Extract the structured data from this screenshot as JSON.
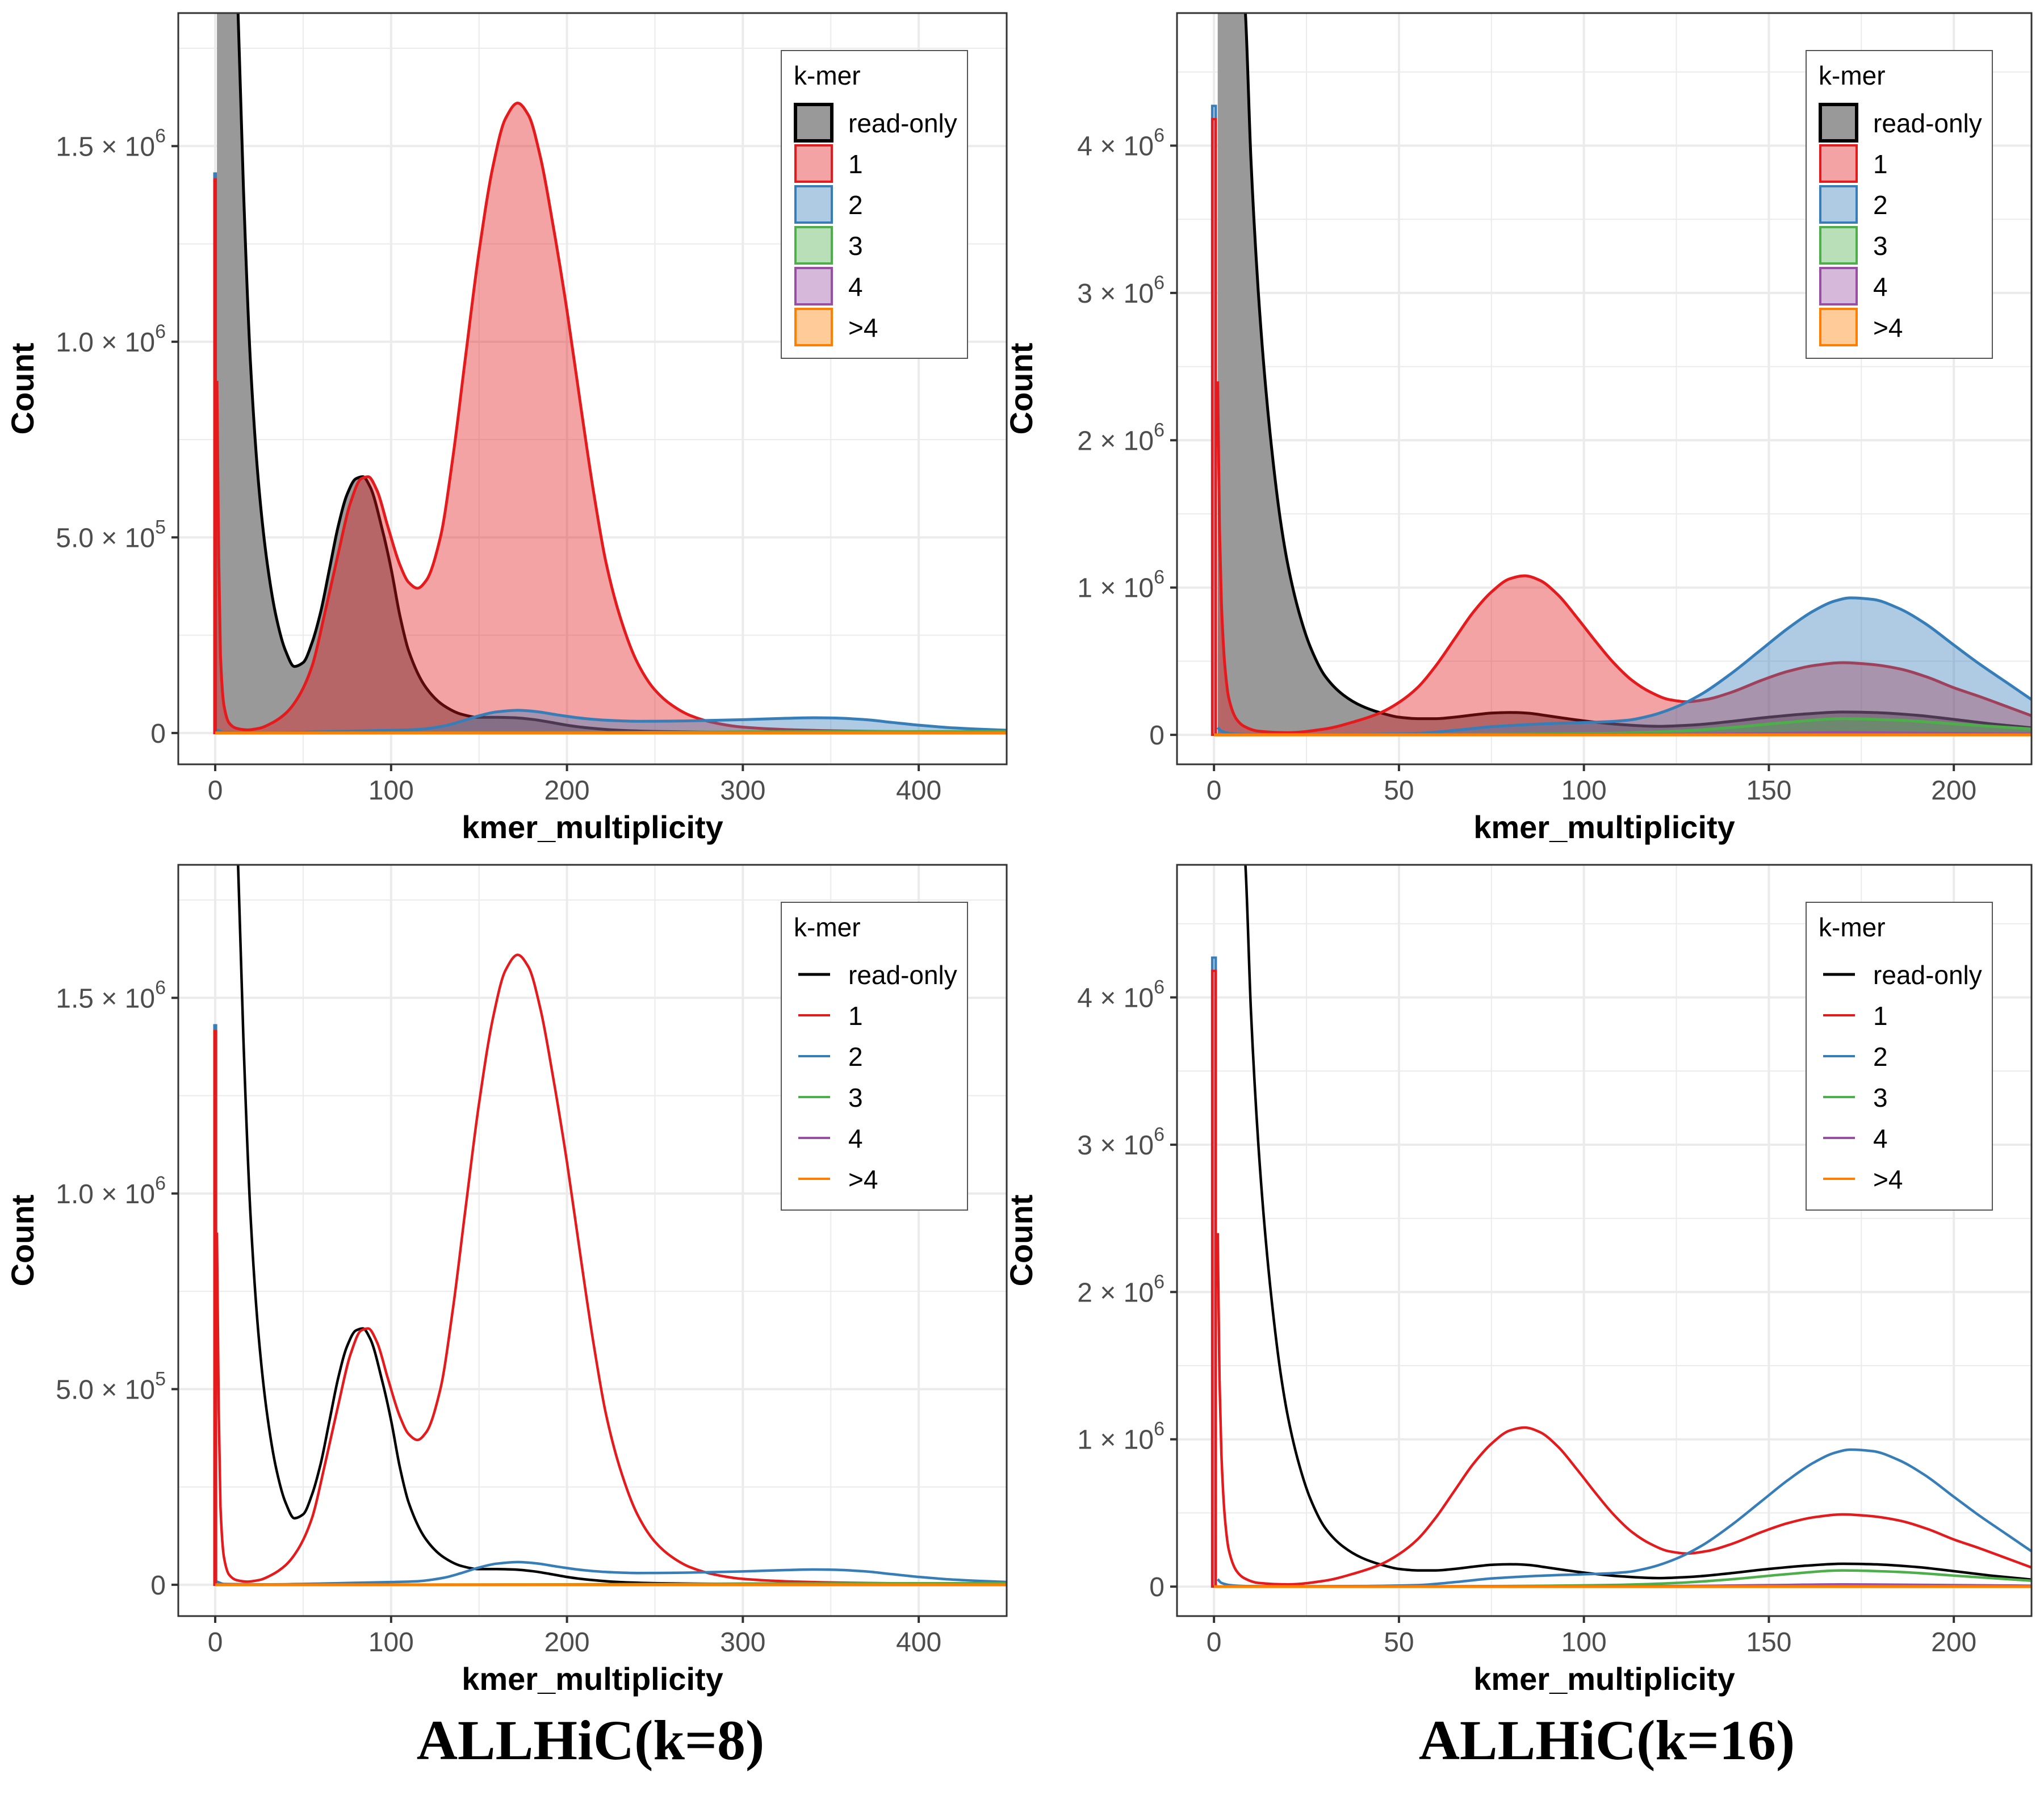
{
  "figure": {
    "titles": [
      "ALLHiC(k=8)",
      "ALLHiC(k=16)"
    ]
  },
  "palette": {
    "read-only": {
      "line": "#000000",
      "fill": "#999999",
      "fill_opacity": 1.0
    },
    "1": {
      "line": "#E41A1C",
      "fill": "#E41A1C",
      "fill_opacity": 0.4
    },
    "2": {
      "line": "#377EB8",
      "fill": "#377EB8",
      "fill_opacity": 0.4
    },
    "3": {
      "line": "#4DAF4A",
      "fill": "#4DAF4A",
      "fill_opacity": 0.4
    },
    "4": {
      "line": "#984EA3",
      "fill": "#984EA3",
      "fill_opacity": 0.4
    },
    ">4": {
      "line": "#FF7F00",
      "fill": "#FF7F00",
      "fill_opacity": 0.4
    }
  },
  "chart_data": [
    {
      "id": "k8-filled",
      "type": "area",
      "style": "filled",
      "panel": "top-left",
      "title": "",
      "xlabel": "kmer_multiplicity",
      "ylabel": "Count",
      "xlim": [
        -21,
        450
      ],
      "ylim": [
        -80000.0,
        1840000.0
      ],
      "xticks": [
        0,
        100,
        200,
        300,
        400
      ],
      "xtick_labels": [
        "0",
        "100",
        "200",
        "300",
        "400"
      ],
      "yticks": [
        0,
        500000,
        1000000,
        1500000
      ],
      "ytick_labels": [
        {
          "mant": "0",
          "exp": ""
        },
        {
          "mant": "5.0 × 10",
          "exp": "5"
        },
        {
          "mant": "1.0 × 10",
          "exp": "6"
        },
        {
          "mant": "1.5 × 10",
          "exp": "6"
        }
      ],
      "grid": true,
      "legend": {
        "title": "k-mer",
        "placement": "top-right",
        "key": "box",
        "entries": [
          "read-only",
          "1",
          "2",
          "3",
          "4",
          ">4"
        ]
      },
      "zero_bars": [
        {
          "name": "2",
          "value": 1430000
        },
        {
          "name": "1",
          "value": 1415000
        }
      ],
      "series": [
        {
          "name": "read-only",
          "x": [
            1,
            3,
            5,
            8,
            10,
            13,
            16,
            20,
            25,
            30,
            35,
            40,
            45,
            50,
            55,
            60,
            65,
            70,
            75,
            80,
            84,
            88,
            95,
            100,
            105,
            110,
            120,
            130,
            140,
            150,
            160,
            170,
            180,
            190,
            200,
            210,
            230,
            250,
            300,
            350,
            400,
            450
          ],
          "y": [
            9000000,
            7000000,
            5000000,
            3200000,
            2500000,
            1840000,
            1400000,
            950000,
            620000,
            420000,
            290000,
            210000,
            170000,
            180000,
            230000,
            310000,
            420000,
            530000,
            610000,
            650000,
            655000,
            630000,
            520000,
            420000,
            300000,
            210000,
            115000,
            70000,
            48000,
            40000,
            40000,
            39000,
            35000,
            28000,
            20000,
            14000,
            7000,
            4000,
            1500,
            600,
            200,
            0
          ]
        },
        {
          "name": "1",
          "x": [
            1,
            2,
            3,
            5,
            8,
            12,
            18,
            25,
            32,
            40,
            47,
            55,
            62,
            70,
            77,
            83,
            87,
            92,
            98,
            105,
            110,
            115,
            120,
            128,
            135,
            142,
            150,
            158,
            165,
            172,
            178,
            185,
            192,
            200,
            208,
            215,
            222,
            230,
            240,
            250,
            260,
            270,
            285,
            300,
            330,
            360,
            400,
            450
          ],
          "y": [
            900000,
            450000,
            200000,
            70000,
            25000,
            12000,
            8000,
            12000,
            25000,
            50000,
            90000,
            170000,
            300000,
            460000,
            590000,
            650000,
            655000,
            620000,
            530000,
            430000,
            385000,
            370000,
            390000,
            500000,
            700000,
            950000,
            1230000,
            1450000,
            1570000,
            1610000,
            1580000,
            1470000,
            1300000,
            1080000,
            830000,
            620000,
            440000,
            300000,
            180000,
            110000,
            70000,
            45000,
            25000,
            15000,
            8000,
            5000,
            3000,
            1500
          ]
        },
        {
          "name": "2",
          "x": [
            1,
            5,
            30,
            60,
            80,
            100,
            115,
            130,
            140,
            150,
            160,
            172,
            182,
            195,
            210,
            225,
            240,
            260,
            280,
            300,
            320,
            340,
            355,
            370,
            385,
            400,
            420,
            450
          ],
          "y": [
            8000,
            2000,
            1000,
            3000,
            5000,
            7000,
            9000,
            18000,
            30000,
            44000,
            54000,
            58000,
            55000,
            46000,
            37000,
            32000,
            30000,
            30500,
            32000,
            34000,
            37000,
            39000,
            38000,
            34000,
            27000,
            20000,
            13000,
            7000
          ]
        },
        {
          "name": "3",
          "x": [
            0,
            150,
            200,
            250,
            300,
            350,
            400,
            450
          ],
          "y": [
            0,
            500,
            1000,
            2000,
            3000,
            3500,
            3800,
            4000
          ]
        },
        {
          "name": "4",
          "x": [
            0,
            450
          ],
          "y": [
            0,
            0
          ]
        },
        {
          "name": ">4",
          "x": [
            0,
            450
          ],
          "y": [
            0,
            0
          ]
        }
      ]
    },
    {
      "id": "k16-filled",
      "type": "area",
      "style": "filled",
      "panel": "top-right",
      "title": "",
      "xlabel": "kmer_multiplicity",
      "ylabel": "Count",
      "xlim": [
        -10,
        221
      ],
      "ylim": [
        -200000.0,
        4900000.0
      ],
      "xticks": [
        0,
        50,
        100,
        150,
        200
      ],
      "xtick_labels": [
        "0",
        "50",
        "100",
        "150",
        "200"
      ],
      "yticks": [
        0,
        1000000,
        2000000,
        3000000,
        4000000
      ],
      "ytick_labels": [
        {
          "mant": "0",
          "exp": ""
        },
        {
          "mant": "1 × 10",
          "exp": "6"
        },
        {
          "mant": "2 × 10",
          "exp": "6"
        },
        {
          "mant": "3 × 10",
          "exp": "6"
        },
        {
          "mant": "4 × 10",
          "exp": "6"
        }
      ],
      "grid": true,
      "legend": {
        "title": "k-mer",
        "placement": "top-right",
        "key": "box",
        "entries": [
          "read-only",
          "1",
          "2",
          "3",
          "4",
          ">4"
        ]
      },
      "zero_bars": [
        {
          "name": "2",
          "value": 4270000
        },
        {
          "name": "1",
          "value": 4180000
        }
      ],
      "series": [
        {
          "name": "read-only",
          "x": [
            1,
            3,
            5,
            7,
            8.5,
            10,
            12,
            14,
            16,
            18,
            20,
            23,
            26,
            30,
            35,
            40,
            45,
            50,
            55,
            60,
            65,
            70,
            75,
            80,
            85,
            90,
            95,
            100,
            110,
            120,
            130,
            140,
            150,
            160,
            170,
            180,
            190,
            200,
            210,
            221
          ],
          "y": [
            12000000,
            8500000,
            6500000,
            5400000,
            4900000,
            3900000,
            3000000,
            2350000,
            1850000,
            1450000,
            1150000,
            830000,
            600000,
            400000,
            270000,
            195000,
            150000,
            120000,
            110000,
            110000,
            120000,
            135000,
            148000,
            152000,
            147000,
            130000,
            112000,
            95000,
            70000,
            58000,
            68000,
            92000,
            120000,
            142000,
            155000,
            150000,
            133000,
            105000,
            75000,
            48000
          ]
        },
        {
          "name": "1",
          "x": [
            1,
            1.5,
            2,
            3,
            4,
            6,
            8,
            12,
            20,
            30,
            38,
            45,
            50,
            55,
            60,
            65,
            70,
            75,
            80,
            84,
            88,
            93,
            98,
            103,
            108,
            113,
            118,
            123,
            128,
            133,
            140,
            148,
            155,
            162,
            170,
            177,
            185,
            193,
            200,
            207,
            214,
            221
          ],
          "y": [
            2400000,
            1400000,
            900000,
            450000,
            250000,
            110000,
            60000,
            25000,
            15000,
            40000,
            90000,
            150000,
            220000,
            320000,
            470000,
            650000,
            830000,
            970000,
            1060000,
            1080000,
            1050000,
            950000,
            800000,
            640000,
            490000,
            370000,
            290000,
            240000,
            225000,
            240000,
            290000,
            370000,
            430000,
            470000,
            490000,
            480000,
            450000,
            390000,
            320000,
            260000,
            195000,
            130000
          ]
        },
        {
          "name": "2",
          "x": [
            1,
            2,
            5,
            10,
            20,
            40,
            55,
            65,
            75,
            85,
            95,
            105,
            112,
            118,
            125,
            132,
            140,
            148,
            155,
            162,
            168,
            172,
            178,
            185,
            192,
            200,
            207,
            214,
            221
          ],
          "y": [
            50000,
            25000,
            8000,
            3000,
            2000,
            4000,
            10000,
            30000,
            55000,
            70000,
            80000,
            88000,
            100000,
            130000,
            190000,
            280000,
            420000,
            580000,
            720000,
            840000,
            910000,
            930000,
            920000,
            860000,
            760000,
            610000,
            480000,
            360000,
            240000
          ]
        },
        {
          "name": "3",
          "x": [
            0,
            60,
            90,
            110,
            125,
            140,
            155,
            170,
            185,
            200,
            221
          ],
          "y": [
            0,
            2000,
            6000,
            12000,
            25000,
            50000,
            85000,
            110000,
            100000,
            75000,
            40000
          ]
        },
        {
          "name": "4",
          "x": [
            0,
            120,
            150,
            170,
            190,
            221
          ],
          "y": [
            0,
            3000,
            10000,
            15000,
            12000,
            6000
          ]
        },
        {
          "name": ">4",
          "x": [
            0,
            221
          ],
          "y": [
            0,
            0
          ]
        }
      ]
    },
    {
      "id": "k8-lines",
      "type": "line",
      "style": "lines",
      "panel": "bottom-left",
      "title": "ALLHiC(k=8)",
      "xlabel": "kmer_multiplicity",
      "ylabel": "Count",
      "ref": "k8-filled",
      "legend": {
        "title": "k-mer",
        "placement": "top-right",
        "key": "line",
        "entries": [
          "read-only",
          "1",
          "2",
          "3",
          "4",
          ">4"
        ]
      }
    },
    {
      "id": "k16-lines",
      "type": "line",
      "style": "lines",
      "panel": "bottom-right",
      "title": "ALLHiC(k=16)",
      "xlabel": "kmer_multiplicity",
      "ylabel": "Count",
      "ref": "k16-filled",
      "legend": {
        "title": "k-mer",
        "placement": "top-right",
        "key": "line",
        "entries": [
          "read-only",
          "1",
          "2",
          "3",
          "4",
          ">4"
        ]
      }
    }
  ]
}
